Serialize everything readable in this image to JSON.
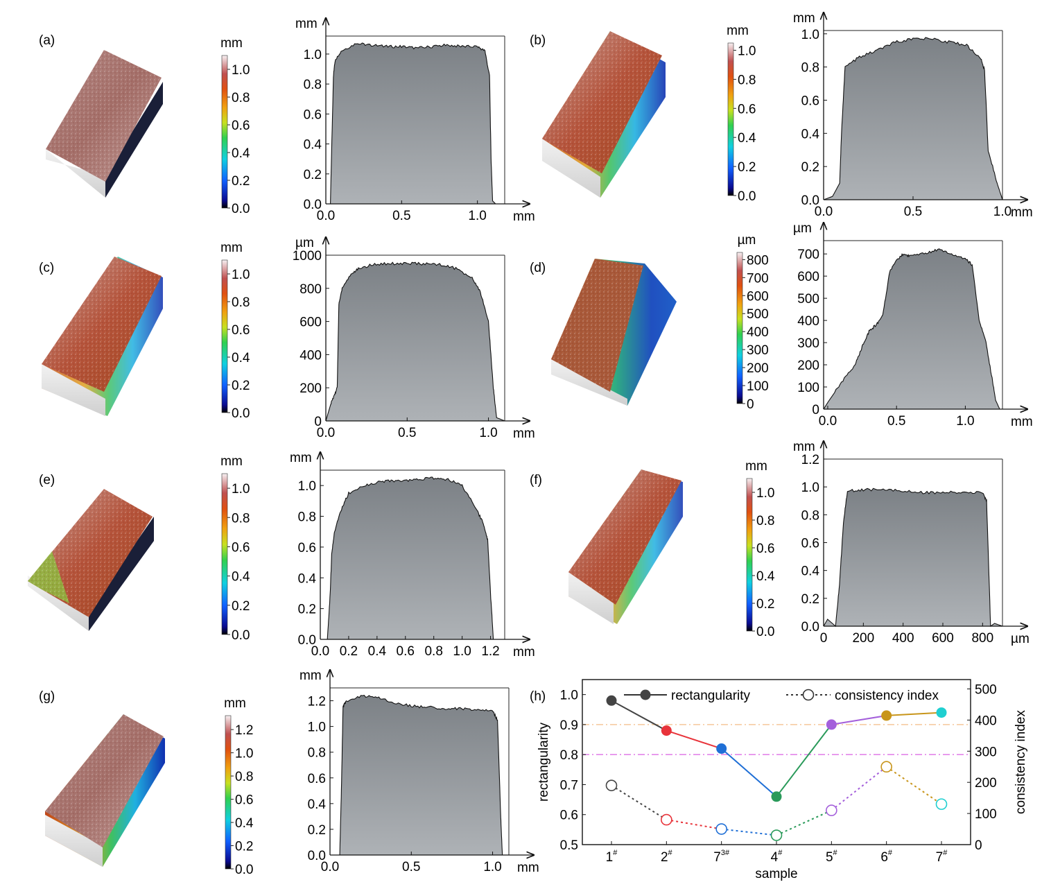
{
  "panels": [
    {
      "label": "(a)",
      "cb_unit": "mm",
      "cb_ticks": [
        "0.0",
        "0.2",
        "0.4",
        "0.6",
        "0.8",
        "1.0"
      ],
      "cb_max": 1.1,
      "profile": {
        "yunit": "mm",
        "xunit": "mm",
        "xlim": [
          0,
          1.18
        ],
        "ylim": [
          0,
          1.12
        ],
        "xticks": [
          0,
          0.5,
          1.0
        ],
        "xticklabels": [
          "0.0",
          "0.5",
          "1.0"
        ],
        "yticks": [
          0,
          0.2,
          0.4,
          0.6,
          0.8,
          1.0
        ],
        "yticklabels": [
          "0.0",
          "0.2",
          "0.4",
          "0.6",
          "0.8",
          "1.0"
        ],
        "x": [
          0.0,
          0.03,
          0.05,
          0.06,
          0.1,
          0.2,
          0.3,
          0.4,
          0.5,
          0.6,
          0.7,
          0.8,
          0.9,
          1.0,
          1.05,
          1.08,
          1.09,
          1.1,
          1.12,
          1.18
        ],
        "y": [
          0.0,
          0.0,
          0.85,
          0.95,
          1.02,
          1.07,
          1.06,
          1.05,
          1.05,
          1.04,
          1.05,
          1.06,
          1.05,
          1.05,
          1.02,
          0.85,
          0.3,
          0.02,
          0.0,
          0.0
        ]
      }
    },
    {
      "label": "(b)",
      "cb_unit": "mm",
      "cb_ticks": [
        "0.0",
        "0.2",
        "0.4",
        "0.6",
        "0.8",
        "1.0"
      ],
      "cb_max": 1.05,
      "profile": {
        "yunit": "mm",
        "xunit": "mm",
        "xlim": [
          0,
          1.0
        ],
        "ylim": [
          0,
          1.02
        ],
        "xticks": [
          0,
          0.5,
          1.0
        ],
        "xticklabels": [
          "0.0",
          "0.5",
          "1.0"
        ],
        "yticks": [
          0,
          0.2,
          0.4,
          0.6,
          0.8,
          1.0
        ],
        "yticklabels": [
          "0.0",
          "0.2",
          "0.4",
          "0.6",
          "0.8",
          "1.0"
        ],
        "x": [
          0.0,
          0.05,
          0.09,
          0.1,
          0.12,
          0.2,
          0.3,
          0.4,
          0.5,
          0.6,
          0.7,
          0.8,
          0.88,
          0.9,
          0.92,
          0.97,
          1.0
        ],
        "y": [
          0.0,
          0.02,
          0.1,
          0.4,
          0.8,
          0.86,
          0.9,
          0.95,
          0.97,
          0.97,
          0.95,
          0.93,
          0.85,
          0.78,
          0.3,
          0.1,
          0.0
        ]
      }
    },
    {
      "label": "(c)",
      "cb_unit": "mm",
      "cb_ticks": [
        "0.0",
        "0.2",
        "0.4",
        "0.6",
        "0.8",
        "1.0"
      ],
      "cb_max": 1.1,
      "profile": {
        "yunit": "µm",
        "xunit": "mm",
        "xlim": [
          0,
          1.1
        ],
        "ylim": [
          0,
          1000
        ],
        "xticks": [
          0,
          0.5,
          1.0
        ],
        "xticklabels": [
          "0.0",
          "0.5",
          "1.0"
        ],
        "yticks": [
          0,
          200,
          400,
          600,
          800,
          1000
        ],
        "yticklabels": [
          "0",
          "200",
          "400",
          "600",
          "800",
          "1000"
        ],
        "x": [
          0.0,
          0.03,
          0.05,
          0.07,
          0.08,
          0.1,
          0.15,
          0.2,
          0.3,
          0.4,
          0.5,
          0.6,
          0.7,
          0.8,
          0.9,
          0.95,
          1.0,
          1.03,
          1.05,
          1.1
        ],
        "y": [
          0,
          100,
          150,
          200,
          700,
          800,
          880,
          920,
          945,
          950,
          950,
          948,
          945,
          920,
          860,
          780,
          600,
          200,
          20,
          0
        ]
      }
    },
    {
      "label": "(d)",
      "cb_unit": "µm",
      "cb_ticks": [
        "0",
        "100",
        "200",
        "300",
        "400",
        "500",
        "600",
        "700",
        "800"
      ],
      "cb_max": 840,
      "profile": {
        "yunit": "µm",
        "xunit": "mm",
        "xlim": [
          -0.03,
          1.27
        ],
        "ylim": [
          0,
          760
        ],
        "xticks": [
          0,
          0.5,
          1.0
        ],
        "xticklabels": [
          "0.0",
          "0.5",
          "1.0"
        ],
        "yticks": [
          0,
          100,
          200,
          300,
          400,
          500,
          600,
          700
        ],
        "yticklabels": [
          "0",
          "100",
          "200",
          "300",
          "400",
          "500",
          "600",
          "700"
        ],
        "x": [
          -0.03,
          0.0,
          0.1,
          0.2,
          0.25,
          0.3,
          0.35,
          0.4,
          0.45,
          0.5,
          0.55,
          0.6,
          0.7,
          0.8,
          0.9,
          1.0,
          1.05,
          1.1,
          1.15,
          1.2,
          1.22,
          1.25
        ],
        "y": [
          0,
          30,
          120,
          200,
          280,
          350,
          380,
          420,
          620,
          670,
          700,
          690,
          700,
          720,
          700,
          680,
          650,
          400,
          300,
          120,
          40,
          0
        ]
      }
    },
    {
      "label": "(e)",
      "cb_unit": "mm",
      "cb_ticks": [
        "0.0",
        "0.2",
        "0.4",
        "0.6",
        "0.8",
        "1.0"
      ],
      "cb_max": 1.1,
      "profile": {
        "yunit": "mm",
        "xunit": "mm",
        "xlim": [
          0,
          1.3
        ],
        "ylim": [
          0,
          1.1
        ],
        "xticks": [
          0,
          0.2,
          0.4,
          0.6,
          0.8,
          1.0,
          1.2
        ],
        "xticklabels": [
          "0.0",
          "0.2",
          "0.4",
          "0.6",
          "0.8",
          "1.0",
          "1.2"
        ],
        "yticks": [
          0,
          0.2,
          0.4,
          0.6,
          0.8,
          1.0
        ],
        "yticklabels": [
          "0.0",
          "0.2",
          "0.4",
          "0.6",
          "0.8",
          "1.0"
        ],
        "x": [
          0.0,
          0.05,
          0.07,
          0.08,
          0.1,
          0.15,
          0.2,
          0.3,
          0.4,
          0.5,
          0.6,
          0.7,
          0.8,
          0.9,
          1.0,
          1.1,
          1.15,
          1.18,
          1.2,
          1.22,
          1.3
        ],
        "y": [
          0.0,
          0.0,
          0.3,
          0.55,
          0.7,
          0.85,
          0.95,
          1.0,
          1.02,
          1.03,
          1.03,
          1.04,
          1.05,
          1.04,
          1.0,
          0.85,
          0.75,
          0.65,
          0.3,
          0.0,
          0.0
        ]
      }
    },
    {
      "label": "(f)",
      "cb_unit": "mm",
      "cb_ticks": [
        "0.0",
        "0.2",
        "0.4",
        "0.6",
        "0.8",
        "1.0"
      ],
      "cb_max": 1.1,
      "profile": {
        "yunit": "mm",
        "xunit": "µm",
        "xlim": [
          0,
          900
        ],
        "ylim": [
          0,
          1.2
        ],
        "xticks": [
          0,
          200,
          400,
          600,
          800
        ],
        "xticklabels": [
          "0",
          "200",
          "400",
          "600",
          "800"
        ],
        "yticks": [
          0,
          0.2,
          0.4,
          0.6,
          0.8,
          1.0,
          1.2
        ],
        "yticklabels": [
          "0.0",
          "0.2",
          "0.4",
          "0.6",
          "0.8",
          "1.0",
          "1.2"
        ],
        "x": [
          0,
          20,
          60,
          80,
          100,
          120,
          200,
          300,
          400,
          500,
          600,
          700,
          800,
          820,
          840,
          860,
          900
        ],
        "y": [
          0.0,
          0.05,
          0.0,
          0.3,
          0.75,
          0.97,
          0.98,
          0.98,
          0.97,
          0.96,
          0.96,
          0.96,
          0.96,
          0.9,
          0.0,
          0.02,
          0.0
        ]
      }
    },
    {
      "label": "(g)",
      "cb_unit": "mm",
      "cb_ticks": [
        "0.0",
        "0.2",
        "0.4",
        "0.6",
        "0.8",
        "1.0",
        "1.2"
      ],
      "cb_max": 1.32,
      "profile": {
        "yunit": "mm",
        "xunit": "mm",
        "xlim": [
          0,
          1.1
        ],
        "ylim": [
          0,
          1.3
        ],
        "xticks": [
          0,
          0.5,
          1.0
        ],
        "xticklabels": [
          "0.0",
          "0.5",
          "1.0"
        ],
        "yticks": [
          0,
          0.2,
          0.4,
          0.6,
          0.8,
          1.0,
          1.2
        ],
        "yticklabels": [
          "0.0",
          "0.2",
          "0.4",
          "0.6",
          "0.8",
          "1.0",
          "1.2"
        ],
        "x": [
          0.0,
          0.06,
          0.07,
          0.08,
          0.1,
          0.2,
          0.3,
          0.4,
          0.5,
          0.6,
          0.7,
          0.8,
          0.9,
          1.0,
          1.03,
          1.05,
          1.06,
          1.1
        ],
        "y": [
          0.0,
          0.0,
          0.5,
          1.15,
          1.2,
          1.24,
          1.22,
          1.18,
          1.16,
          1.15,
          1.14,
          1.14,
          1.13,
          1.12,
          1.05,
          0.3,
          0.0,
          0.0
        ]
      }
    }
  ],
  "chart_data": {
    "type": "line",
    "label": "(h)",
    "categories": [
      "1#",
      "2#",
      "73#",
      "4#",
      "5#",
      "6#",
      "7#"
    ],
    "xlabel": "sample",
    "ylabel": "rectangularity",
    "ylabel_right": "consistency index",
    "ylim": [
      0.5,
      1.05
    ],
    "ylim_right": [
      0,
      530
    ],
    "yticks": [
      "0.5",
      "0.6",
      "0.7",
      "0.8",
      "0.9",
      "1.0"
    ],
    "yticks_right": [
      "0",
      "100",
      "200",
      "300",
      "400",
      "500"
    ],
    "series": [
      {
        "name": "rectangularity",
        "axis": "left",
        "style": "solid-filled",
        "values": [
          0.98,
          0.88,
          0.82,
          0.66,
          0.9,
          0.93,
          0.94
        ]
      },
      {
        "name": "consistency index",
        "axis": "right",
        "style": "dotted-open",
        "values": [
          190,
          80,
          50,
          30,
          110,
          250,
          130
        ]
      }
    ],
    "point_colors": [
      "#444444",
      "#e8333a",
      "#1f6fd6",
      "#2a9a5a",
      "#a45fdb",
      "#c8951a",
      "#1fcfd0"
    ],
    "reference_lines": [
      {
        "axis": "left",
        "value": 0.9,
        "color": "#f5c79a"
      },
      {
        "axis": "left",
        "value": 0.8,
        "color": "#e07ae8"
      }
    ]
  }
}
